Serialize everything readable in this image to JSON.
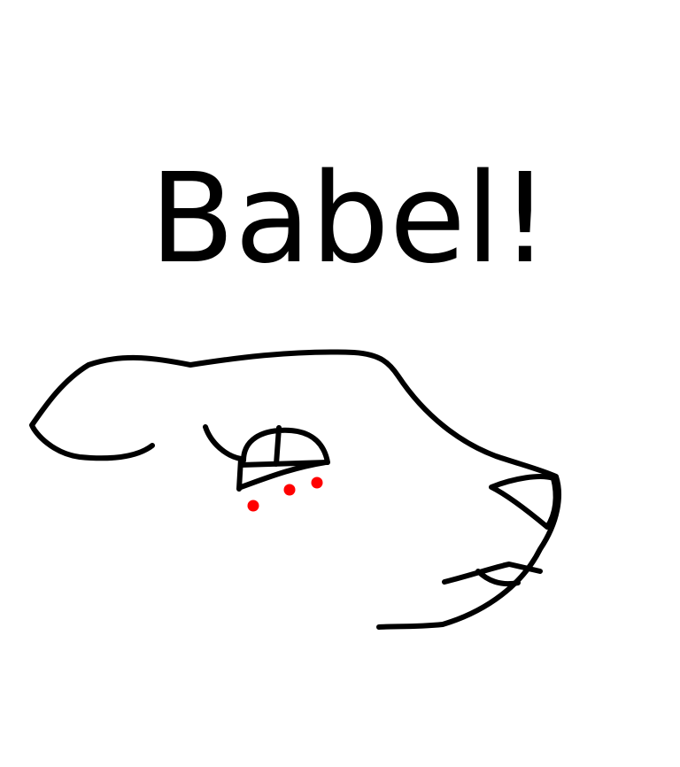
{
  "title": "Babel!"
}
